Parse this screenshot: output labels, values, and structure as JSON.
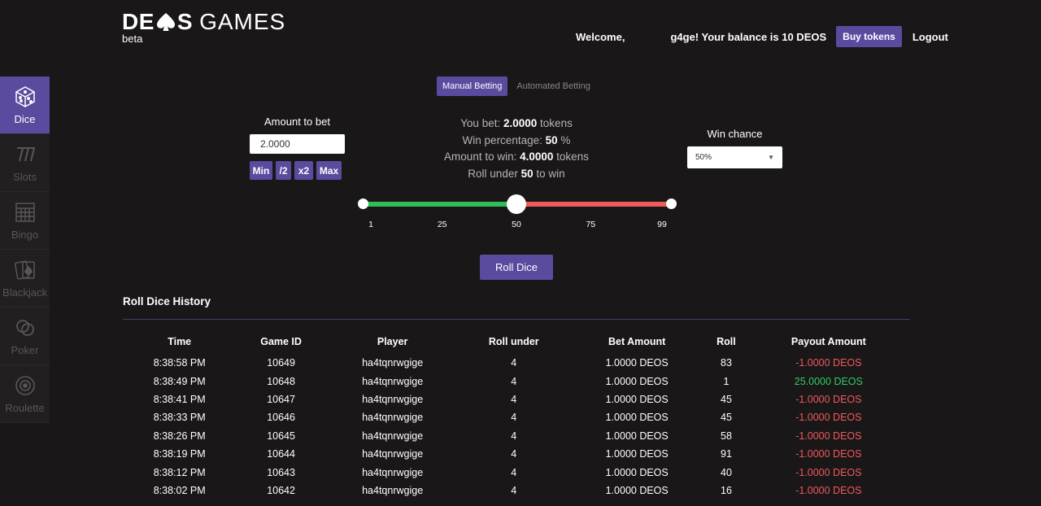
{
  "header": {
    "logo_deos_left": "DE",
    "logo_deos_right": "S",
    "logo_games": "GAMES",
    "logo_beta": "beta",
    "welcome": "Welcome,",
    "balance_text": "g4ge! Your balance is 10 DEOS",
    "buy_tokens": "Buy tokens",
    "logout": "Logout"
  },
  "sidebar": {
    "items": [
      {
        "label": "Dice",
        "icon": "dice-icon",
        "active": true
      },
      {
        "label": "Slots",
        "icon": "slots-icon",
        "active": false
      },
      {
        "label": "Bingo",
        "icon": "bingo-icon",
        "active": false
      },
      {
        "label": "Blackjack",
        "icon": "cards-icon",
        "active": false
      },
      {
        "label": "Poker",
        "icon": "chips-icon",
        "active": false
      },
      {
        "label": "Roulette",
        "icon": "roulette-icon",
        "active": false
      }
    ]
  },
  "betting_tabs": {
    "manual": "Manual Betting",
    "automated": "Automated Betting"
  },
  "amount": {
    "label": "Amount to bet",
    "value": "2.0000",
    "btn_min": "Min",
    "btn_half": "/2",
    "btn_double": "x2",
    "btn_max": "Max"
  },
  "summary": {
    "you_bet_label": "You bet:",
    "you_bet_value": "2.0000",
    "you_bet_unit": "tokens",
    "win_pct_label": "Win percentage:",
    "win_pct_value": "50",
    "win_pct_unit": "%",
    "amount_win_label": "Amount to win:",
    "amount_win_value": "4.0000",
    "amount_win_unit": "tokens",
    "roll_under_label": "Roll under",
    "roll_under_value": "50",
    "roll_under_unit": "to win"
  },
  "win_chance": {
    "label": "Win chance",
    "selected": "50%"
  },
  "slider": {
    "value": 50,
    "min": 1,
    "max": 99,
    "ticks": [
      "1",
      "25",
      "50",
      "75",
      "99"
    ]
  },
  "roll_button": "Roll Dice",
  "history": {
    "title": "Roll Dice History",
    "columns": [
      "Time",
      "Game ID",
      "Player",
      "Roll under",
      "Bet Amount",
      "Roll",
      "Payout Amount"
    ],
    "rows": [
      [
        "8:38:58 PM",
        "10649",
        "ha4tqnrwgige",
        "4",
        "1.0000 DEOS",
        "83",
        "-1.0000 DEOS"
      ],
      [
        "8:38:49 PM",
        "10648",
        "ha4tqnrwgige",
        "4",
        "1.0000 DEOS",
        "1",
        "25.0000 DEOS"
      ],
      [
        "8:38:41 PM",
        "10647",
        "ha4tqnrwgige",
        "4",
        "1.0000 DEOS",
        "45",
        "-1.0000 DEOS"
      ],
      [
        "8:38:33 PM",
        "10646",
        "ha4tqnrwgige",
        "4",
        "1.0000 DEOS",
        "45",
        "-1.0000 DEOS"
      ],
      [
        "8:38:26 PM",
        "10645",
        "ha4tqnrwgige",
        "4",
        "1.0000 DEOS",
        "58",
        "-1.0000 DEOS"
      ],
      [
        "8:38:19 PM",
        "10644",
        "ha4tqnrwgige",
        "4",
        "1.0000 DEOS",
        "91",
        "-1.0000 DEOS"
      ],
      [
        "8:38:12 PM",
        "10643",
        "ha4tqnrwgige",
        "4",
        "1.0000 DEOS",
        "40",
        "-1.0000 DEOS"
      ],
      [
        "8:38:02 PM",
        "10642",
        "ha4tqnrwgige",
        "4",
        "1.0000 DEOS",
        "16",
        "-1.0000 DEOS"
      ]
    ]
  },
  "colors": {
    "accent": "#5c4a9e",
    "background": "#1a1719",
    "win": "#2ecc5f",
    "loss": "#ef5a5a"
  }
}
